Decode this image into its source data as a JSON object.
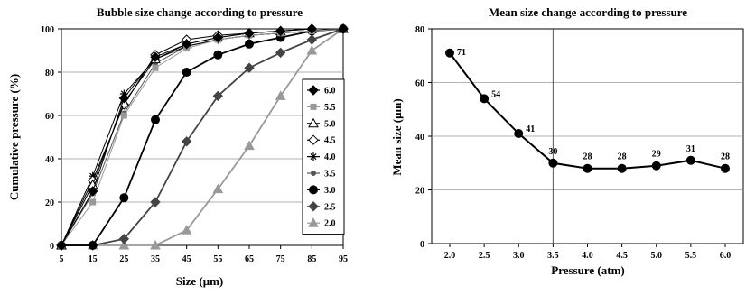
{
  "chart_data": [
    {
      "type": "line",
      "title": "Bubble size change according to pressure",
      "xlabel": "Size (μm)",
      "ylabel": "Cumulative pressure (%)",
      "x": [
        5,
        15,
        25,
        35,
        45,
        55,
        65,
        75,
        85,
        95
      ],
      "x_tick_labels": [
        "5",
        "15",
        "25",
        "35",
        "45",
        "55",
        "65",
        "75",
        "85",
        "95"
      ],
      "ylim": [
        0,
        100
      ],
      "y_ticks": [
        0,
        20,
        40,
        60,
        80,
        100
      ],
      "grid": "horizontal",
      "legend_position": "right",
      "series": [
        {
          "name": "6.0",
          "marker": "diamond",
          "color": "#000000",
          "values": [
            0,
            25,
            68,
            87,
            93,
            96,
            98,
            99,
            100,
            100
          ]
        },
        {
          "name": "5.5",
          "marker": "square",
          "color": "#999999",
          "values": [
            0,
            20,
            60,
            82,
            91,
            95,
            97,
            98,
            99,
            100
          ]
        },
        {
          "name": "5.0",
          "marker": "triangle-open",
          "color": "#000000",
          "values": [
            0,
            28,
            66,
            86,
            93,
            96,
            98,
            99,
            100,
            100
          ]
        },
        {
          "name": "4.5",
          "marker": "diamond-open",
          "color": "#000000",
          "values": [
            0,
            30,
            65,
            88,
            95,
            97,
            98,
            99,
            100,
            100
          ]
        },
        {
          "name": "4.0",
          "marker": "asterisk",
          "color": "#000000",
          "values": [
            0,
            32,
            70,
            86,
            92,
            95,
            97,
            98,
            99,
            100
          ]
        },
        {
          "name": "3.5",
          "marker": "circle-small",
          "color": "#555555",
          "values": [
            0,
            24,
            61,
            84,
            92,
            95,
            97,
            98,
            99,
            100
          ]
        },
        {
          "name": "3.0",
          "marker": "circle",
          "color": "#000000",
          "values": [
            0,
            0,
            22,
            58,
            80,
            88,
            93,
            96,
            99,
            100
          ]
        },
        {
          "name": "2.5",
          "marker": "diamond",
          "color": "#444444",
          "values": [
            0,
            0,
            3,
            20,
            48,
            69,
            82,
            89,
            95,
            100
          ]
        },
        {
          "name": "2.0",
          "marker": "triangle",
          "color": "#999999",
          "values": [
            0,
            0,
            0,
            0,
            7,
            26,
            46,
            69,
            90,
            100
          ]
        }
      ]
    },
    {
      "type": "line",
      "title": "Mean size change according to pressure",
      "xlabel": "Pressure (atm)",
      "ylabel": "Mean size (μm)",
      "x": [
        2.0,
        2.5,
        3.0,
        3.5,
        4.0,
        4.5,
        5.0,
        5.5,
        6.0
      ],
      "x_tick_labels": [
        "2.0",
        "2.5",
        "3.0",
        "3.5",
        "4.0",
        "4.5",
        "5.0",
        "5.5",
        "6.0"
      ],
      "ylim": [
        0,
        80
      ],
      "y_ticks": [
        0,
        20,
        40,
        60,
        80
      ],
      "grid": "horizontal",
      "vertical_line_at": 3.5,
      "series": [
        {
          "marker": "circle",
          "color": "#000000",
          "values": [
            71,
            54,
            41,
            30,
            28,
            28,
            29,
            31,
            28
          ]
        }
      ],
      "data_labels": [
        "71",
        "54",
        "41",
        "30",
        "28",
        "28",
        "29",
        "31",
        "28"
      ]
    }
  ]
}
